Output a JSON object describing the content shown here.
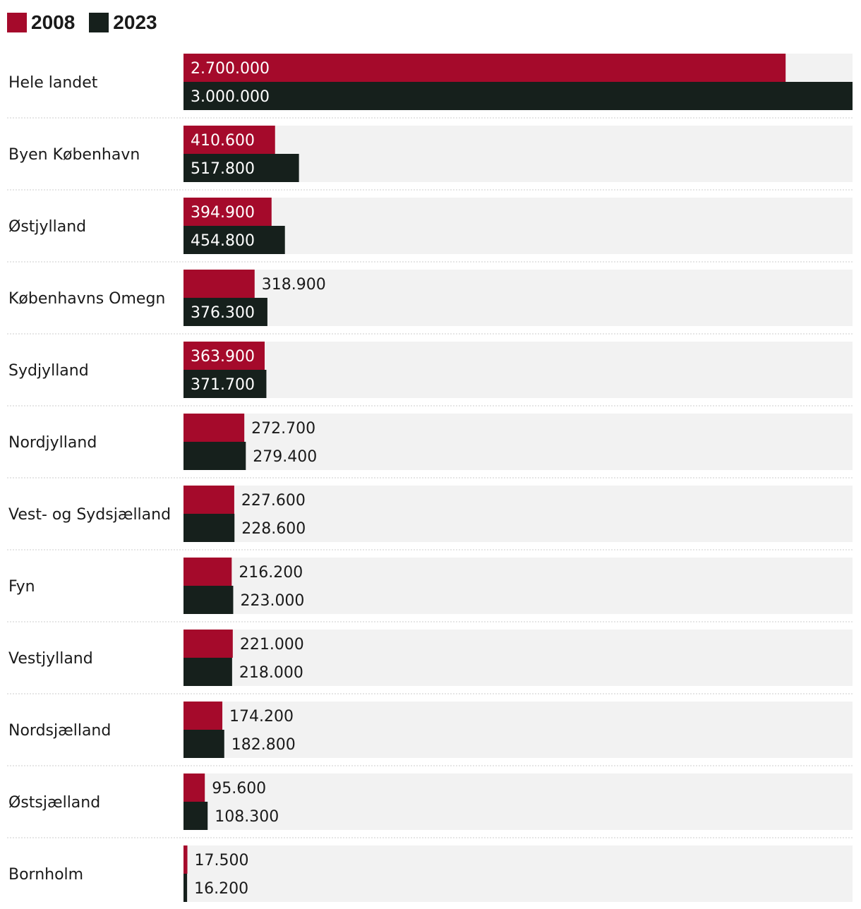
{
  "legend": [
    {
      "label": "2008",
      "color": "#a50a2b"
    },
    {
      "label": "2023",
      "color": "#16201c"
    }
  ],
  "chart_data": {
    "type": "bar",
    "orientation": "horizontal",
    "categories": [
      "Hele landet",
      "Byen København",
      "Østjylland",
      "Københavns Omegn",
      "Sydjylland",
      "Nordjylland",
      "Vest- og Sydsjælland",
      "Fyn",
      "Vestjylland",
      "Nordsjælland",
      "Østsjælland",
      "Bornholm"
    ],
    "series": [
      {
        "name": "2008",
        "color": "#a50a2b",
        "values": [
          2700000,
          410600,
          394900,
          318900,
          363900,
          272700,
          227600,
          216200,
          221000,
          174200,
          95600,
          17500
        ],
        "labels": [
          "2.700.000",
          "410.600",
          "394.900",
          "318.900",
          "363.900",
          "272.700",
          "227.600",
          "216.200",
          "221.000",
          "174.200",
          "95.600",
          "17.500"
        ]
      },
      {
        "name": "2023",
        "color": "#16201c",
        "values": [
          3000000,
          517800,
          454800,
          376300,
          371700,
          279400,
          228600,
          223000,
          218000,
          182800,
          108300,
          16200
        ],
        "labels": [
          "3.000.000",
          "517.800",
          "454.800",
          "376.300",
          "371.700",
          "279.400",
          "228.600",
          "223.000",
          "218.000",
          "182.800",
          "108.300",
          "16.200"
        ]
      }
    ],
    "xlim": [
      0,
      3000000
    ],
    "legend_position": "top-left",
    "grid": false,
    "track_color": "#f2f2f2",
    "separator_color": "#cccccc"
  }
}
